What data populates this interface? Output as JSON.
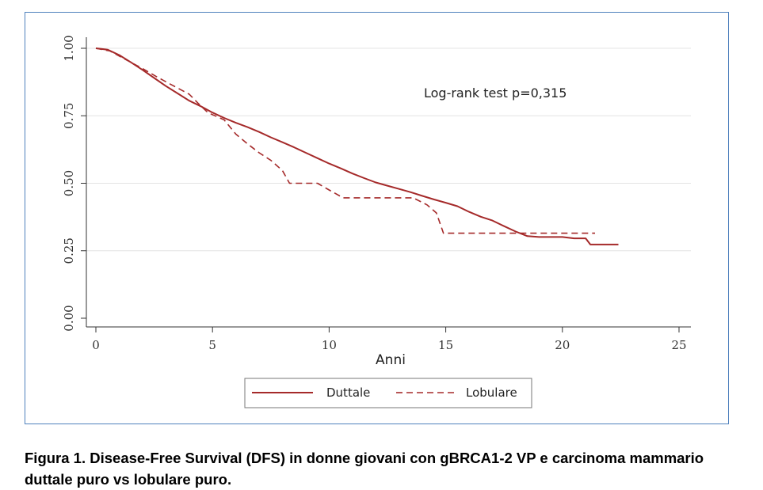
{
  "chart_data": {
    "type": "line",
    "xlabel": "Anni",
    "ylabel": "",
    "xlim": [
      0,
      25
    ],
    "ylim": [
      0,
      1
    ],
    "xticks": [
      "0",
      "5",
      "10",
      "15",
      "20",
      "25"
    ],
    "yticks": [
      "0.00",
      "0.25",
      "0.50",
      "0.75",
      "1.00"
    ],
    "grid": "horizontal",
    "annotation": "Log-rank test p=0,315",
    "legend_position": "bottom",
    "series": [
      {
        "name": "Duttale",
        "style": "solid",
        "color": "#a52a2a",
        "points": [
          [
            0,
            1.0
          ],
          [
            0.5,
            0.995
          ],
          [
            1,
            0.975
          ],
          [
            1.5,
            0.948
          ],
          [
            2,
            0.92
          ],
          [
            2.5,
            0.89
          ],
          [
            3,
            0.86
          ],
          [
            3.5,
            0.833
          ],
          [
            4,
            0.806
          ],
          [
            4.5,
            0.785
          ],
          [
            5,
            0.762
          ],
          [
            5.5,
            0.742
          ],
          [
            6,
            0.724
          ],
          [
            6.5,
            0.708
          ],
          [
            7,
            0.69
          ],
          [
            7.5,
            0.67
          ],
          [
            8,
            0.652
          ],
          [
            8.5,
            0.633
          ],
          [
            9,
            0.613
          ],
          [
            9.5,
            0.593
          ],
          [
            10,
            0.573
          ],
          [
            10.5,
            0.555
          ],
          [
            11,
            0.536
          ],
          [
            11.5,
            0.519
          ],
          [
            12,
            0.503
          ],
          [
            12.5,
            0.491
          ],
          [
            13,
            0.479
          ],
          [
            13.5,
            0.467
          ],
          [
            14,
            0.453
          ],
          [
            14.5,
            0.44
          ],
          [
            15,
            0.428
          ],
          [
            15.5,
            0.415
          ],
          [
            16,
            0.394
          ],
          [
            16.5,
            0.376
          ],
          [
            17,
            0.362
          ],
          [
            17.5,
            0.341
          ],
          [
            18,
            0.321
          ],
          [
            18.5,
            0.304
          ],
          [
            19,
            0.301
          ],
          [
            20,
            0.301
          ],
          [
            20.5,
            0.296
          ],
          [
            21,
            0.296
          ],
          [
            21.2,
            0.273
          ],
          [
            22.4,
            0.273
          ]
        ]
      },
      {
        "name": "Lobulare",
        "style": "dashed",
        "color": "#a52a2a",
        "points": [
          [
            0,
            1.0
          ],
          [
            0.6,
            0.99
          ],
          [
            1.2,
            0.962
          ],
          [
            2,
            0.925
          ],
          [
            2.6,
            0.895
          ],
          [
            3.2,
            0.867
          ],
          [
            4,
            0.83
          ],
          [
            4.4,
            0.795
          ],
          [
            4.8,
            0.762
          ],
          [
            5.5,
            0.735
          ],
          [
            6,
            0.682
          ],
          [
            6.5,
            0.646
          ],
          [
            7,
            0.613
          ],
          [
            7.5,
            0.585
          ],
          [
            8,
            0.547
          ],
          [
            8.3,
            0.5
          ],
          [
            9,
            0.5
          ],
          [
            9.5,
            0.5
          ],
          [
            10,
            0.475
          ],
          [
            10.6,
            0.446
          ],
          [
            12,
            0.446
          ],
          [
            13.6,
            0.446
          ],
          [
            14.2,
            0.42
          ],
          [
            14.6,
            0.39
          ],
          [
            14.9,
            0.315
          ],
          [
            16,
            0.315
          ],
          [
            18,
            0.315
          ],
          [
            19,
            0.315
          ],
          [
            21.4,
            0.315
          ]
        ]
      }
    ]
  },
  "caption": "Figura 1. Disease-Free Survival (DFS) in donne giovani con gBRCA1-2 VP e carcinoma mammario duttale puro vs lobulare puro."
}
